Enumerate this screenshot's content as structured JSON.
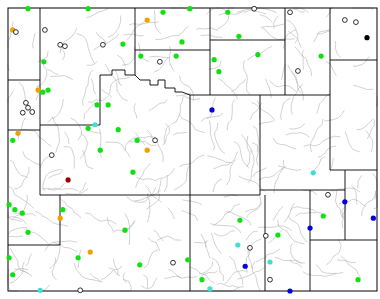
{
  "chart_data": {
    "type": "map",
    "xlim": [
      -111.05,
      -104.05
    ],
    "ylim": [
      41,
      45
    ],
    "tick_labels": false,
    "series": [
      {
        "color": "#11e011",
        "marker": "circle",
        "x": [
          -110.67,
          -109.53,
          -108.11,
          -107.6,
          -106.88,
          -108.87,
          -108.53,
          -107.75,
          -107.86,
          -107.14,
          -106.67,
          -106.31,
          -107.05,
          -105.11,
          -110.37,
          -110.39,
          -110.29,
          -109.36,
          -109.15,
          -109.53,
          -108.96,
          -108.6,
          -110.96,
          -109.3,
          -108.68,
          -111.03,
          -110.92,
          -110.78,
          -110.01,
          -110.67,
          -111.03,
          -110.96,
          -109.72,
          -108.83,
          -108.55,
          -107.64,
          -106.65,
          -105.93,
          -105.07,
          -104.41,
          -107.37
        ],
        "y": [
          44.99,
          44.99,
          44.94,
          44.99,
          44.94,
          44.49,
          44.32,
          44.52,
          44.32,
          44.27,
          44.6,
          44.34,
          44.1,
          44.32,
          44.24,
          43.81,
          43.84,
          43.63,
          43.63,
          43.3,
          43.28,
          43.13,
          43.13,
          42.99,
          42.68,
          42.22,
          42.15,
          42.1,
          42.15,
          41.83,
          41.47,
          41.23,
          41.47,
          41.86,
          41.37,
          41.44,
          42.0,
          41.79,
          42.06,
          41.16,
          41.16
        ]
      },
      {
        "color": "#f0a000",
        "marker": "circle",
        "x": [
          -108.41,
          -110.96,
          -110.48,
          -108.41,
          -110.86,
          -110.06,
          -109.49
        ],
        "y": [
          44.83,
          44.69,
          43.84,
          42.99,
          43.23,
          42.03,
          41.55
        ]
      },
      {
        "color": "#a00000",
        "marker": "circle",
        "x": [
          -109.91
        ],
        "y": [
          42.57
        ]
      },
      {
        "color": "#40e0d0",
        "marker": "circle",
        "x": [
          -109.4,
          -105.26,
          -106.69,
          -106.08,
          -110.44,
          -107.22
        ],
        "y": [
          43.35,
          42.67,
          41.65,
          41.41,
          41.01,
          41.03
        ]
      },
      {
        "color": "#0000e0",
        "marker": "circle",
        "x": [
          -107.18,
          -106.55,
          -105.7,
          -105.32,
          -104.66,
          -104.12
        ],
        "y": [
          43.56,
          41.35,
          41.0,
          41.89,
          42.26,
          42.03
        ]
      },
      {
        "color": "#000000",
        "marker": "open",
        "x": [
          -106.38,
          -105.7,
          -104.66,
          -104.45,
          -110.9,
          -110.35,
          -110.06,
          -109.97,
          -109.25,
          -108.17,
          -105.55,
          -110.71,
          -110.67,
          -110.59,
          -110.77,
          -108.26,
          -110.22,
          -109.68,
          -107.92,
          -106.46,
          -106.16,
          -106.08,
          -104.98
        ],
        "y": [
          44.99,
          44.94,
          44.83,
          44.8,
          44.66,
          44.69,
          44.48,
          44.46,
          44.48,
          44.24,
          44.11,
          43.66,
          43.59,
          43.53,
          43.52,
          43.13,
          42.92,
          41.01,
          41.4,
          41.61,
          41.78,
          41.16,
          42.36
        ]
      },
      {
        "color": "#000000",
        "marker": "circle",
        "x": [
          -104.24
        ],
        "y": [
          44.58
        ]
      }
    ]
  }
}
